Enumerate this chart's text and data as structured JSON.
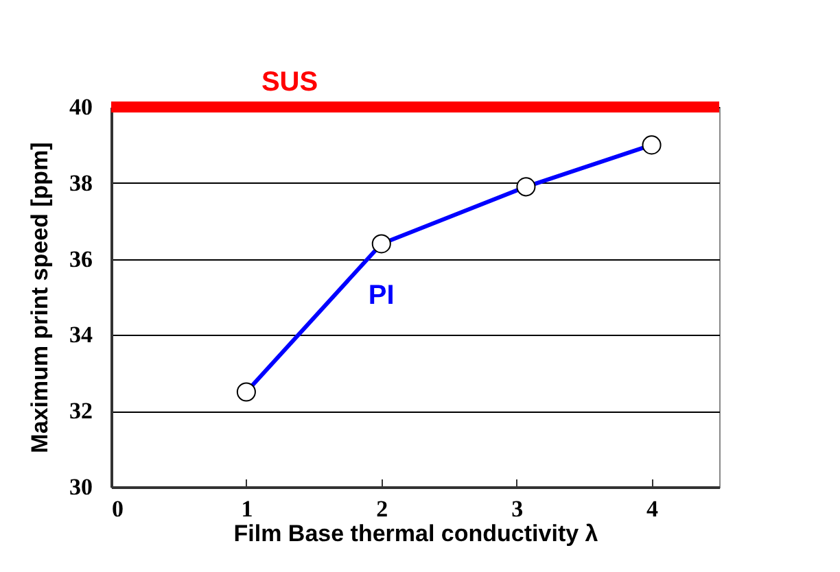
{
  "chart_data": {
    "type": "line",
    "xlabel": "Film Base thermal conductivity λ",
    "ylabel": "Maximum print speed [ppm]",
    "x": [
      1,
      2,
      3.07,
      4
    ],
    "series": [
      {
        "name": "PI",
        "color": "#0000ff",
        "values": [
          32.5,
          36.4,
          37.9,
          39.0
        ]
      }
    ],
    "xlim": [
      0,
      4.5
    ],
    "xticks": [
      0,
      1,
      2,
      3,
      4
    ],
    "ylim": [
      30,
      40
    ],
    "yticks": [
      30,
      32,
      34,
      36,
      38,
      40
    ],
    "ref_lines": [
      {
        "axis": "y",
        "value": 40,
        "label": "SUS",
        "color": "#ff0000"
      }
    ],
    "grid": "y",
    "marker": "circle",
    "line_style": "solid"
  }
}
